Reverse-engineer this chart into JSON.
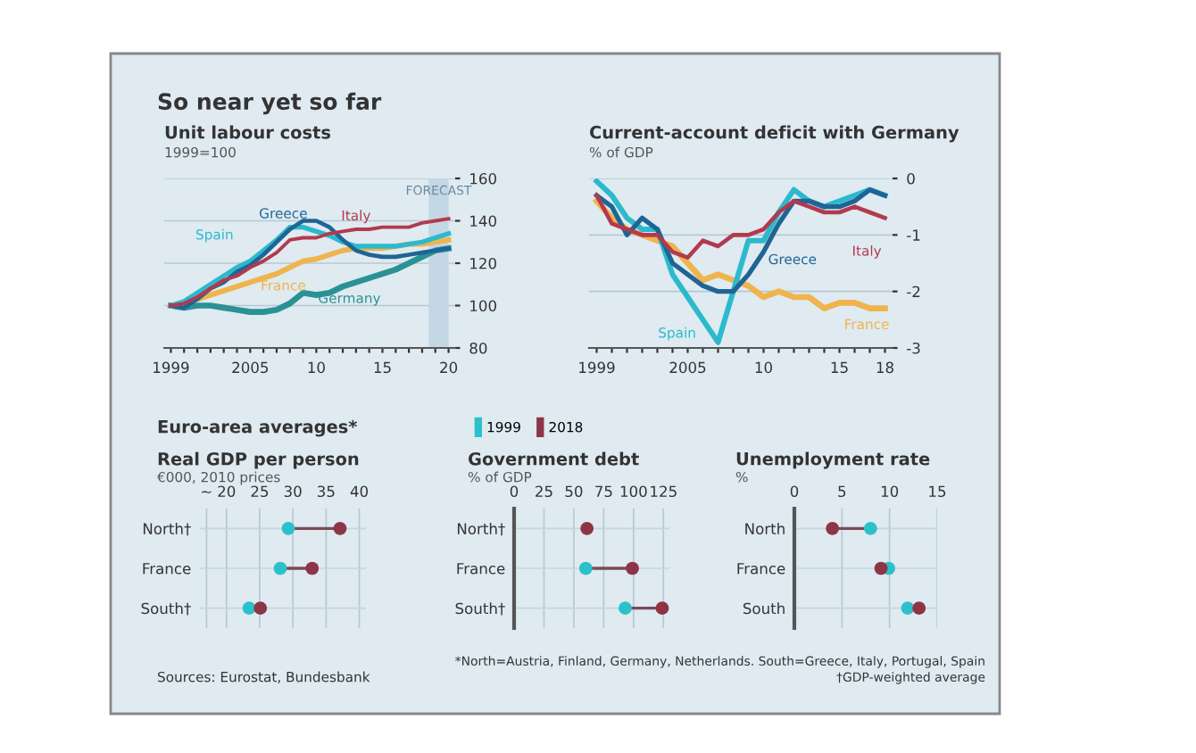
{
  "chart_data": [
    {
      "type": "line",
      "title": "Unit labour costs",
      "subtitle": "1999=100",
      "annotations": [
        "So near yet so far"
      ],
      "x": [
        1999,
        2000,
        2001,
        2002,
        2003,
        2004,
        2005,
        2006,
        2007,
        2008,
        2009,
        2010,
        2011,
        2012,
        2013,
        2014,
        2015,
        2016,
        2017,
        2018,
        2019,
        2020
      ],
      "series": [
        {
          "name": "Germany",
          "color": "#2a9294",
          "values": [
            100,
            99,
            100,
            100,
            99,
            98,
            97,
            97,
            98,
            101,
            106,
            105,
            106,
            109,
            111,
            113,
            115,
            117,
            120,
            123,
            126,
            127
          ]
        },
        {
          "name": "France",
          "color": "#f0b44c",
          "values": [
            100,
            101,
            103,
            105,
            107,
            109,
            111,
            113,
            115,
            118,
            121,
            122,
            124,
            126,
            127,
            127,
            127,
            128,
            129,
            129,
            130,
            131
          ]
        },
        {
          "name": "Spain",
          "color": "#2cb9cc",
          "values": [
            100,
            102,
            106,
            110,
            114,
            118,
            121,
            126,
            131,
            137,
            137,
            135,
            133,
            130,
            128,
            128,
            128,
            128,
            129,
            130,
            132,
            134
          ]
        },
        {
          "name": "Greece",
          "color": "#1f6594",
          "values": [
            100,
            99,
            103,
            108,
            111,
            116,
            119,
            124,
            130,
            136,
            140,
            140,
            137,
            131,
            126,
            124,
            123,
            123,
            124,
            125,
            126,
            127
          ]
        },
        {
          "name": "Italy",
          "color": "#b23a4e",
          "values": [
            100,
            101,
            104,
            108,
            112,
            114,
            118,
            121,
            125,
            131,
            132,
            132,
            134,
            135,
            136,
            136,
            137,
            137,
            137,
            139,
            140,
            141
          ]
        }
      ],
      "xlim": [
        1998.5,
        2020.5
      ],
      "ylim": [
        80,
        160
      ],
      "yticks": [
        80,
        100,
        120,
        140,
        160
      ],
      "xticks": [
        1999,
        {
          "value": 2000,
          "label": null
        },
        {
          "value": 2001,
          "label": null
        },
        {
          "value": 2002,
          "label": null
        },
        {
          "value": 2003,
          "label": null
        },
        {
          "value": 2004,
          "label": null
        },
        2005,
        {
          "value": 2006,
          "label": null
        },
        {
          "value": 2007,
          "label": null
        },
        {
          "value": 2008,
          "label": null
        },
        {
          "value": 2009,
          "label": null
        },
        {
          "value": 2010,
          "label": "10"
        },
        {
          "value": 2011,
          "label": null
        },
        {
          "value": 2012,
          "label": null
        },
        {
          "value": 2013,
          "label": null
        },
        {
          "value": 2014,
          "label": null
        },
        {
          "value": 2015,
          "label": "15"
        },
        {
          "value": 2016,
          "label": null
        },
        {
          "value": 2017,
          "label": null
        },
        {
          "value": 2018,
          "label": null
        },
        {
          "value": 2019,
          "label": null
        },
        {
          "value": 2020,
          "label": "20"
        }
      ],
      "bands": [
        {
          "axis": "x",
          "from": 2018.5,
          "to": 2020,
          "label": "FORECAST",
          "color": "#c3d7e5"
        }
      ],
      "grid": "y"
    },
    {
      "type": "line",
      "title": "Current-account deficit with Germany",
      "subtitle": "% of GDP",
      "x": [
        1999,
        2000,
        2001,
        2002,
        2003,
        2004,
        2005,
        2006,
        2007,
        2008,
        2009,
        2010,
        2011,
        2012,
        2013,
        2014,
        2015,
        2016,
        2017,
        2018
      ],
      "series": [
        {
          "name": "France",
          "color": "#f0b44c",
          "values": [
            -0.4,
            -0.7,
            -0.9,
            -1.0,
            -1.1,
            -1.2,
            -1.5,
            -1.8,
            -1.7,
            -1.8,
            -1.9,
            -2.1,
            -2.0,
            -2.1,
            -2.1,
            -2.3,
            -2.2,
            -2.2,
            -2.3,
            -2.3
          ]
        },
        {
          "name": "Spain",
          "color": "#2cb9cc",
          "values": [
            -0.05,
            -0.3,
            -0.7,
            -0.9,
            -0.9,
            -1.7,
            -2.1,
            -2.5,
            -2.9,
            -2.0,
            -1.1,
            -1.1,
            -0.6,
            -0.2,
            -0.4,
            -0.5,
            -0.4,
            -0.3,
            -0.2,
            -0.3
          ]
        },
        {
          "name": "Greece",
          "color": "#1f6594",
          "values": [
            -0.3,
            -0.5,
            -1.0,
            -0.7,
            -0.9,
            -1.5,
            -1.7,
            -1.9,
            -2.0,
            -2.0,
            -1.7,
            -1.3,
            -0.8,
            -0.4,
            -0.4,
            -0.5,
            -0.5,
            -0.4,
            -0.2,
            -0.3
          ]
        },
        {
          "name": "Italy",
          "color": "#b23a4e",
          "values": [
            -0.3,
            -0.8,
            -0.9,
            -1.0,
            -1.0,
            -1.3,
            -1.4,
            -1.1,
            -1.2,
            -1.0,
            -1.0,
            -0.9,
            -0.6,
            -0.4,
            -0.5,
            -0.6,
            -0.6,
            -0.5,
            -0.6,
            -0.7
          ]
        }
      ],
      "xlim": [
        1998.5,
        2018.5
      ],
      "ylim": [
        -3,
        0
      ],
      "yticks": [
        -3,
        -2,
        -1,
        0
      ],
      "xticks": [
        1999,
        {
          "value": 2000,
          "label": null
        },
        {
          "value": 2001,
          "label": null
        },
        {
          "value": 2002,
          "label": null
        },
        {
          "value": 2003,
          "label": null
        },
        {
          "value": 2004,
          "label": null
        },
        2005,
        {
          "value": 2006,
          "label": null
        },
        {
          "value": 2007,
          "label": null
        },
        {
          "value": 2008,
          "label": null
        },
        {
          "value": 2009,
          "label": null
        },
        {
          "value": 2010,
          "label": "10"
        },
        {
          "value": 2011,
          "label": null
        },
        {
          "value": 2012,
          "label": null
        },
        {
          "value": 2013,
          "label": null
        },
        {
          "value": 2014,
          "label": null
        },
        {
          "value": 2015,
          "label": "15"
        },
        {
          "value": 2016,
          "label": null
        },
        {
          "value": 2017,
          "label": null
        },
        {
          "value": 2018,
          "label": "18"
        }
      ],
      "grid": "y"
    },
    {
      "type": "scatter",
      "orientation": "horizontal",
      "title": "Real GDP per person",
      "subtitle": "€000, 2010 prices",
      "annotations": [
        "Euro-area averages*",
        "Sources: Eurostat, Bundesbank"
      ],
      "categories": [
        "North†",
        "France",
        "South†"
      ],
      "series": [
        {
          "name": "1999",
          "color": "#2cc1c9",
          "values": [
            29.3,
            28.1,
            23.4
          ]
        },
        {
          "name": "2018",
          "color": "#8e3447",
          "values": [
            37.1,
            32.9,
            25.1
          ]
        }
      ],
      "xlim": [
        16,
        41
      ],
      "xticks": [
        {
          "value": 17,
          "label": "~"
        },
        20,
        25,
        30,
        35,
        40
      ],
      "grid": true,
      "legend": "top"
    },
    {
      "type": "scatter",
      "orientation": "horizontal",
      "title": "Government debt",
      "subtitle": "% of GDP",
      "categories": [
        "North†",
        "France",
        "South†"
      ],
      "series": [
        {
          "color": "#2cc1c9",
          "values": [
            null,
            60,
            93
          ]
        },
        {
          "color": "#8e3447",
          "values": [
            61,
            99,
            124
          ]
        }
      ],
      "xlim": [
        0,
        130
      ],
      "xticks": [
        0,
        25,
        50,
        75,
        100,
        125
      ],
      "grid": true
    },
    {
      "type": "scatter",
      "orientation": "horizontal",
      "title": "Unemployment rate",
      "subtitle": "%",
      "annotations": [
        "*North=Austria, Finland, Germany, Netherlands. South=Greece, Italy, Portugal, Spain",
        "†GDP-weighted average"
      ],
      "categories": [
        "North",
        "France",
        "South"
      ],
      "series": [
        {
          "color": "#2cc1c9",
          "values": [
            8.0,
            9.9,
            11.9
          ]
        },
        {
          "color": "#8e3447",
          "values": [
            4.0,
            9.1,
            13.1
          ]
        }
      ],
      "xlim": [
        0,
        15
      ],
      "xticks": [
        0,
        5,
        10,
        15
      ],
      "grid": true
    }
  ]
}
